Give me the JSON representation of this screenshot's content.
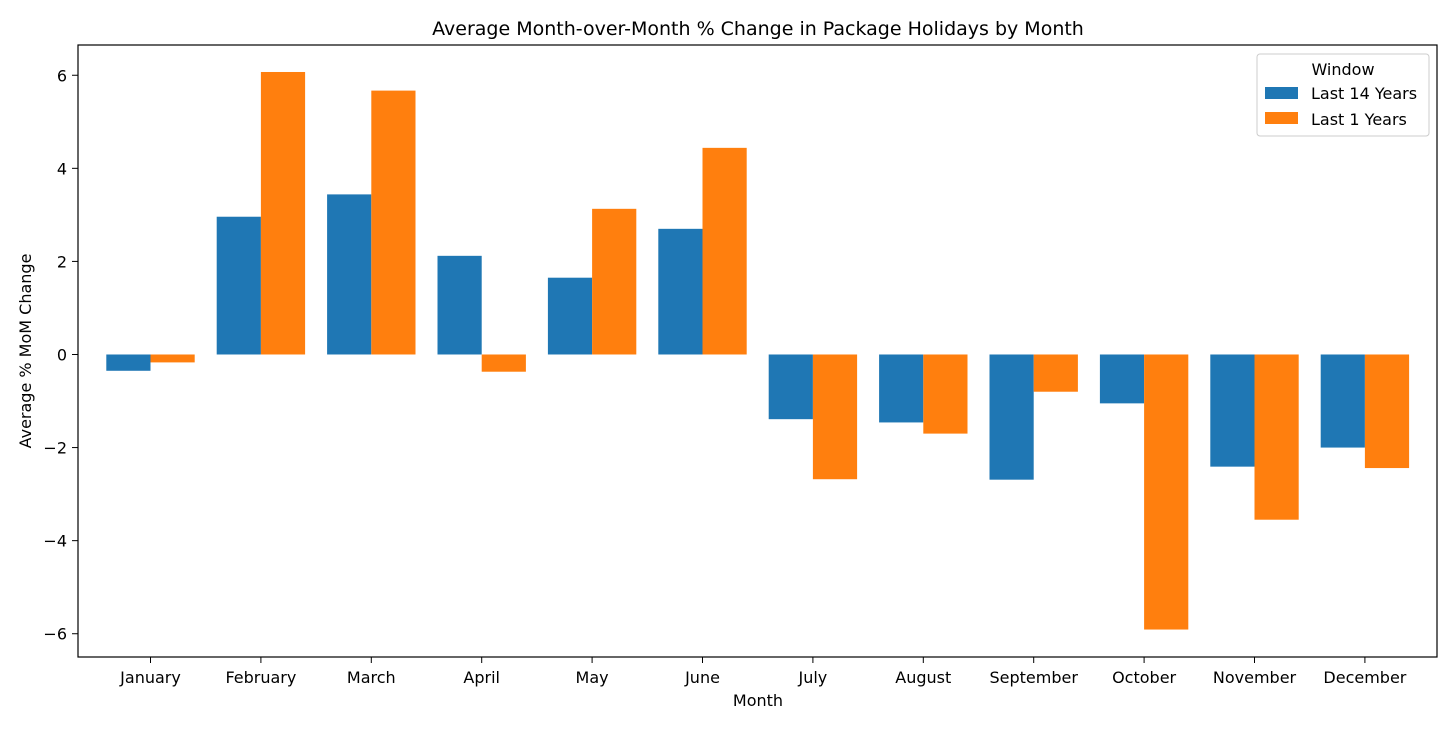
{
  "chart_data": {
    "type": "bar",
    "title": "Average Month-over-Month % Change in Package Holidays by Month",
    "xlabel": "Month",
    "ylabel": "Average % MoM Change",
    "ylim": [
      -6.5,
      6.65
    ],
    "yticks": [
      6,
      4,
      2,
      0,
      -2,
      -4,
      -6
    ],
    "ytick_labels": [
      "6",
      "4",
      "2",
      "0",
      "−2",
      "−4",
      "−6"
    ],
    "grid": false,
    "categories": [
      "January",
      "February",
      "March",
      "April",
      "May",
      "June",
      "July",
      "August",
      "September",
      "October",
      "November",
      "December"
    ],
    "legend": {
      "title": "Window",
      "placement": "top-right"
    },
    "series": [
      {
        "name": "Last 14 Years",
        "color": "#1f77b4",
        "values": [
          -0.35,
          2.96,
          3.44,
          2.12,
          1.65,
          2.7,
          -1.39,
          -1.46,
          -2.69,
          -1.05,
          -2.41,
          -2.0
        ]
      },
      {
        "name": "Last 1 Years",
        "color": "#ff7f0e",
        "values": [
          -0.17,
          6.07,
          5.67,
          -0.37,
          3.13,
          4.44,
          -2.68,
          -1.7,
          -0.8,
          -5.91,
          -3.55,
          -2.44
        ]
      }
    ]
  }
}
